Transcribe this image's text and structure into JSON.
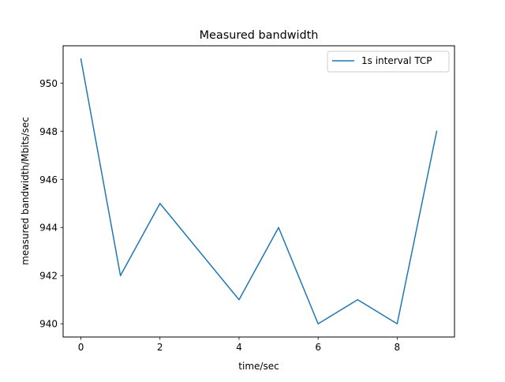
{
  "chart_data": {
    "type": "line",
    "title": "Measured bandwidth",
    "xlabel": "time/sec",
    "ylabel": "measured bandwidth/Mbits/sec",
    "x": [
      0,
      1,
      2,
      3,
      4,
      5,
      6,
      7,
      8,
      9
    ],
    "series": [
      {
        "name": "1s interval TCP",
        "color": "#1f77b4",
        "values": [
          951,
          942,
          945,
          943,
          941,
          944,
          940,
          941,
          940,
          948
        ]
      }
    ],
    "xlim": [
      -0.45,
      9.45
    ],
    "ylim": [
      939.45,
      951.55
    ],
    "xticks": [
      0,
      2,
      4,
      6,
      8
    ],
    "yticks": [
      940,
      942,
      944,
      946,
      948,
      950
    ],
    "xtick_labels": [
      "0",
      "2",
      "4",
      "6",
      "8"
    ],
    "ytick_labels": [
      "940",
      "942",
      "944",
      "946",
      "948",
      "950"
    ],
    "grid": false,
    "legend_position": "top-right"
  }
}
